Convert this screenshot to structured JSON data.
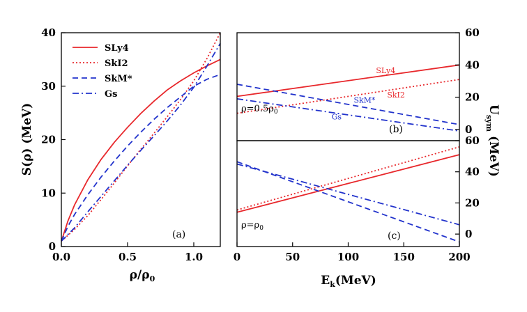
{
  "colors": {
    "red": "#e8282c",
    "blue": "#2233cc",
    "black": "#000000"
  },
  "chart_data": [
    {
      "panel": "(a)",
      "type": "line",
      "xlabel": "ρ/ρ",
      "xlabel_sub": "0",
      "ylabel": "S(ρ) (MeV)",
      "xlim": [
        0.0,
        1.2
      ],
      "ylim": [
        0,
        40
      ],
      "xticks": [
        0.0,
        0.5,
        1.0
      ],
      "xtick_labels": [
        "0.0",
        "0.5",
        "1.0"
      ],
      "yticks": [
        0,
        10,
        20,
        30,
        40
      ],
      "ytick_labels": [
        "0",
        "10",
        "20",
        "30",
        "40"
      ],
      "legend_position": "top-left",
      "series": [
        {
          "name": "SLy4",
          "color": "red",
          "dash": "solid",
          "x": [
            0.0,
            0.05,
            0.1,
            0.2,
            0.3,
            0.4,
            0.5,
            0.6,
            0.7,
            0.8,
            0.9,
            1.0,
            1.1,
            1.2
          ],
          "y": [
            1.0,
            4.8,
            7.8,
            12.5,
            16.3,
            19.5,
            22.3,
            24.9,
            27.2,
            29.3,
            31.0,
            32.5,
            33.8,
            35.0
          ]
        },
        {
          "name": "SkI2",
          "color": "red",
          "dash": "dot",
          "x": [
            0.0,
            0.1,
            0.2,
            0.3,
            0.4,
            0.5,
            0.6,
            0.7,
            0.8,
            0.9,
            1.0,
            1.1,
            1.2
          ],
          "y": [
            1.0,
            3.2,
            5.8,
            8.8,
            11.9,
            15.1,
            18.2,
            21.2,
            24.3,
            27.5,
            31.0,
            35.2,
            40.0
          ]
        },
        {
          "name": "SkM*",
          "color": "blue",
          "dash": "dash",
          "x": [
            0.0,
            0.05,
            0.1,
            0.2,
            0.3,
            0.4,
            0.5,
            0.6,
            0.7,
            0.8,
            0.9,
            1.0,
            1.1,
            1.2
          ],
          "y": [
            1.0,
            3.8,
            6.0,
            9.7,
            13.0,
            16.0,
            18.8,
            21.4,
            23.8,
            26.0,
            28.0,
            30.0,
            31.3,
            32.2
          ]
        },
        {
          "name": "Gs",
          "color": "blue",
          "dash": "dashdot",
          "x": [
            0.0,
            0.1,
            0.2,
            0.3,
            0.4,
            0.5,
            0.6,
            0.7,
            0.8,
            0.9,
            1.0,
            1.1,
            1.2
          ],
          "y": [
            1.0,
            3.5,
            6.5,
            9.4,
            12.3,
            15.2,
            18.0,
            20.7,
            23.5,
            26.5,
            29.8,
            33.8,
            38.0
          ]
        }
      ]
    },
    {
      "panel": "(b)",
      "type": "line",
      "annotation": "ρ=0.5ρ",
      "annotation_sub": "0",
      "xlim": [
        0,
        200
      ],
      "ylim": [
        -7,
        60
      ],
      "right_yticks": [
        0,
        20,
        40,
        60
      ],
      "right_ytick_labels": [
        "0",
        "20",
        "40",
        "60"
      ],
      "series": [
        {
          "name": "SLy4",
          "color": "red",
          "dash": "solid",
          "x": [
            0,
            200
          ],
          "y": [
            20.5,
            40.0
          ],
          "inline_label": "SLy4"
        },
        {
          "name": "SkI2",
          "color": "red",
          "dash": "dot",
          "x": [
            0,
            200
          ],
          "y": [
            10.0,
            31.0
          ],
          "inline_label": "SkI2"
        },
        {
          "name": "SkM*",
          "color": "blue",
          "dash": "dash",
          "x": [
            0,
            200
          ],
          "y": [
            28.0,
            3.0
          ],
          "inline_label": "SkM*"
        },
        {
          "name": "Gs",
          "color": "blue",
          "dash": "dashdot",
          "x": [
            0,
            200
          ],
          "y": [
            19.0,
            -1.0
          ],
          "inline_label": "Gs"
        }
      ]
    },
    {
      "panel": "(c)",
      "type": "line",
      "annotation": "ρ=ρ",
      "annotation_sub": "0",
      "xlabel": "E",
      "xlabel_sub": "k",
      "xlabel_tail": "(MeV)",
      "xlim": [
        0,
        200
      ],
      "ylim": [
        -8,
        60
      ],
      "xticks": [
        0,
        50,
        100,
        150,
        200
      ],
      "xtick_labels": [
        "0",
        "50",
        "100",
        "150",
        "200"
      ],
      "right_yticks": [
        0,
        20,
        40,
        60
      ],
      "right_ytick_labels": [
        "0",
        "20",
        "40",
        "60"
      ],
      "series": [
        {
          "name": "SLy4",
          "color": "red",
          "dash": "solid",
          "x": [
            0,
            200
          ],
          "y": [
            14.0,
            51.0
          ]
        },
        {
          "name": "SkI2",
          "color": "red",
          "dash": "dot",
          "x": [
            0,
            200
          ],
          "y": [
            15.5,
            56.0
          ]
        },
        {
          "name": "SkM*",
          "color": "blue",
          "dash": "dash",
          "x": [
            0,
            200
          ],
          "y": [
            46.5,
            -5.0
          ]
        },
        {
          "name": "Gs",
          "color": "blue",
          "dash": "dashdot",
          "x": [
            0,
            200
          ],
          "y": [
            45.0,
            6.0
          ]
        }
      ]
    }
  ],
  "right_axis_label": {
    "main": "U",
    "sub": "sym",
    "tail": " (MeV)"
  }
}
